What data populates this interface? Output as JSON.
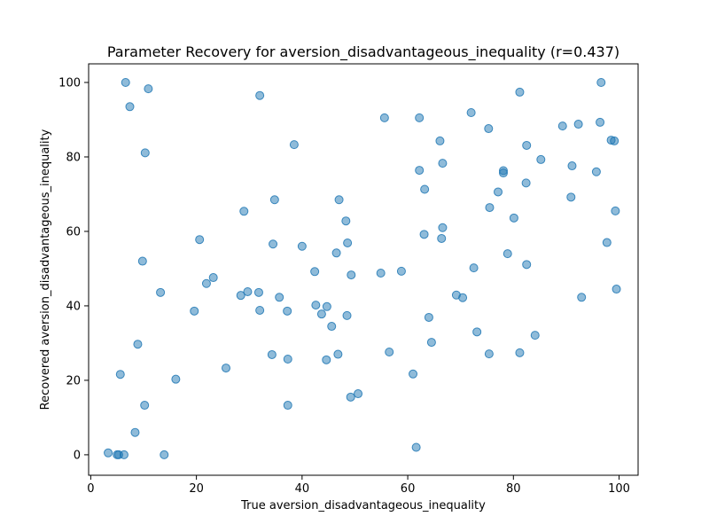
{
  "chart_data": {
    "type": "scatter",
    "title": "Parameter Recovery for aversion_disadvantageous_inequality (r=0.437)",
    "xlabel": "True aversion_disadvantageous_inequality",
    "ylabel": "Recovered aversion_disadvantageous_inequality",
    "xlim": [
      -0.4,
      103.6
    ],
    "ylim": [
      -5.5,
      105.0
    ],
    "xticks": [
      0,
      20,
      40,
      60,
      80,
      100
    ],
    "xtick_labels": [
      "0",
      "20",
      "40",
      "60",
      "80",
      "100"
    ],
    "yticks": [
      0,
      20,
      40,
      60,
      80,
      100
    ],
    "ytick_labels": [
      "0",
      "20",
      "40",
      "60",
      "80",
      "100"
    ],
    "grid": false,
    "marker_color": "#1f77b4",
    "marker_alpha": 0.5,
    "points": [
      [
        3.3,
        0.5
      ],
      [
        5.0,
        0.0
      ],
      [
        5.3,
        0.0
      ],
      [
        6.3,
        0.0
      ],
      [
        13.9,
        0.0
      ],
      [
        8.4,
        6.0
      ],
      [
        10.2,
        13.3
      ],
      [
        5.6,
        21.6
      ],
      [
        8.9,
        29.7
      ],
      [
        9.8,
        52.0
      ],
      [
        10.3,
        81.1
      ],
      [
        6.6,
        100.0
      ],
      [
        7.4,
        93.5
      ],
      [
        10.9,
        98.3
      ],
      [
        13.2,
        43.6
      ],
      [
        16.1,
        20.3
      ],
      [
        19.6,
        38.6
      ],
      [
        20.6,
        57.8
      ],
      [
        21.9,
        46.0
      ],
      [
        23.2,
        47.6
      ],
      [
        25.6,
        23.3
      ],
      [
        28.4,
        42.8
      ],
      [
        29.0,
        65.4
      ],
      [
        29.7,
        43.8
      ],
      [
        31.8,
        43.6
      ],
      [
        32.0,
        38.8
      ],
      [
        32.0,
        96.5
      ],
      [
        34.3,
        26.9
      ],
      [
        34.5,
        56.6
      ],
      [
        34.8,
        68.5
      ],
      [
        35.7,
        42.3
      ],
      [
        37.2,
        38.6
      ],
      [
        37.3,
        25.7
      ],
      [
        37.3,
        13.3
      ],
      [
        38.5,
        83.3
      ],
      [
        40.0,
        56.0
      ],
      [
        42.4,
        49.2
      ],
      [
        42.6,
        40.2
      ],
      [
        43.7,
        37.8
      ],
      [
        44.6,
        25.5
      ],
      [
        44.7,
        39.8
      ],
      [
        45.6,
        34.5
      ],
      [
        46.5,
        54.2
      ],
      [
        46.8,
        27.0
      ],
      [
        47.0,
        68.5
      ],
      [
        48.3,
        62.8
      ],
      [
        48.5,
        37.4
      ],
      [
        48.6,
        56.9
      ],
      [
        49.2,
        15.5
      ],
      [
        49.3,
        48.3
      ],
      [
        50.6,
        16.4
      ],
      [
        54.9,
        48.8
      ],
      [
        55.6,
        90.5
      ],
      [
        56.5,
        27.6
      ],
      [
        58.8,
        49.3
      ],
      [
        61.0,
        21.7
      ],
      [
        61.6,
        2.0
      ],
      [
        62.2,
        90.5
      ],
      [
        62.2,
        76.4
      ],
      [
        63.1,
        59.2
      ],
      [
        63.2,
        71.3
      ],
      [
        64.0,
        36.9
      ],
      [
        64.5,
        30.2
      ],
      [
        66.1,
        84.3
      ],
      [
        66.4,
        58.1
      ],
      [
        66.6,
        61.0
      ],
      [
        66.6,
        78.3
      ],
      [
        69.2,
        42.9
      ],
      [
        70.4,
        42.2
      ],
      [
        72.0,
        91.9
      ],
      [
        72.5,
        50.2
      ],
      [
        73.1,
        33.0
      ],
      [
        75.3,
        87.6
      ],
      [
        75.5,
        66.4
      ],
      [
        75.4,
        27.1
      ],
      [
        77.1,
        70.6
      ],
      [
        78.1,
        76.3
      ],
      [
        78.1,
        75.7
      ],
      [
        78.9,
        54.0
      ],
      [
        80.1,
        63.6
      ],
      [
        81.2,
        97.4
      ],
      [
        81.2,
        27.4
      ],
      [
        82.4,
        73.0
      ],
      [
        82.5,
        83.1
      ],
      [
        82.5,
        51.1
      ],
      [
        84.1,
        32.1
      ],
      [
        85.2,
        79.3
      ],
      [
        89.3,
        88.3
      ],
      [
        90.9,
        69.2
      ],
      [
        91.1,
        77.6
      ],
      [
        92.3,
        88.8
      ],
      [
        92.9,
        42.3
      ],
      [
        95.7,
        76.0
      ],
      [
        96.4,
        89.3
      ],
      [
        96.6,
        100.0
      ],
      [
        97.7,
        57.0
      ],
      [
        98.5,
        84.5
      ],
      [
        99.1,
        84.3
      ],
      [
        99.3,
        65.5
      ],
      [
        99.5,
        44.5
      ]
    ]
  }
}
